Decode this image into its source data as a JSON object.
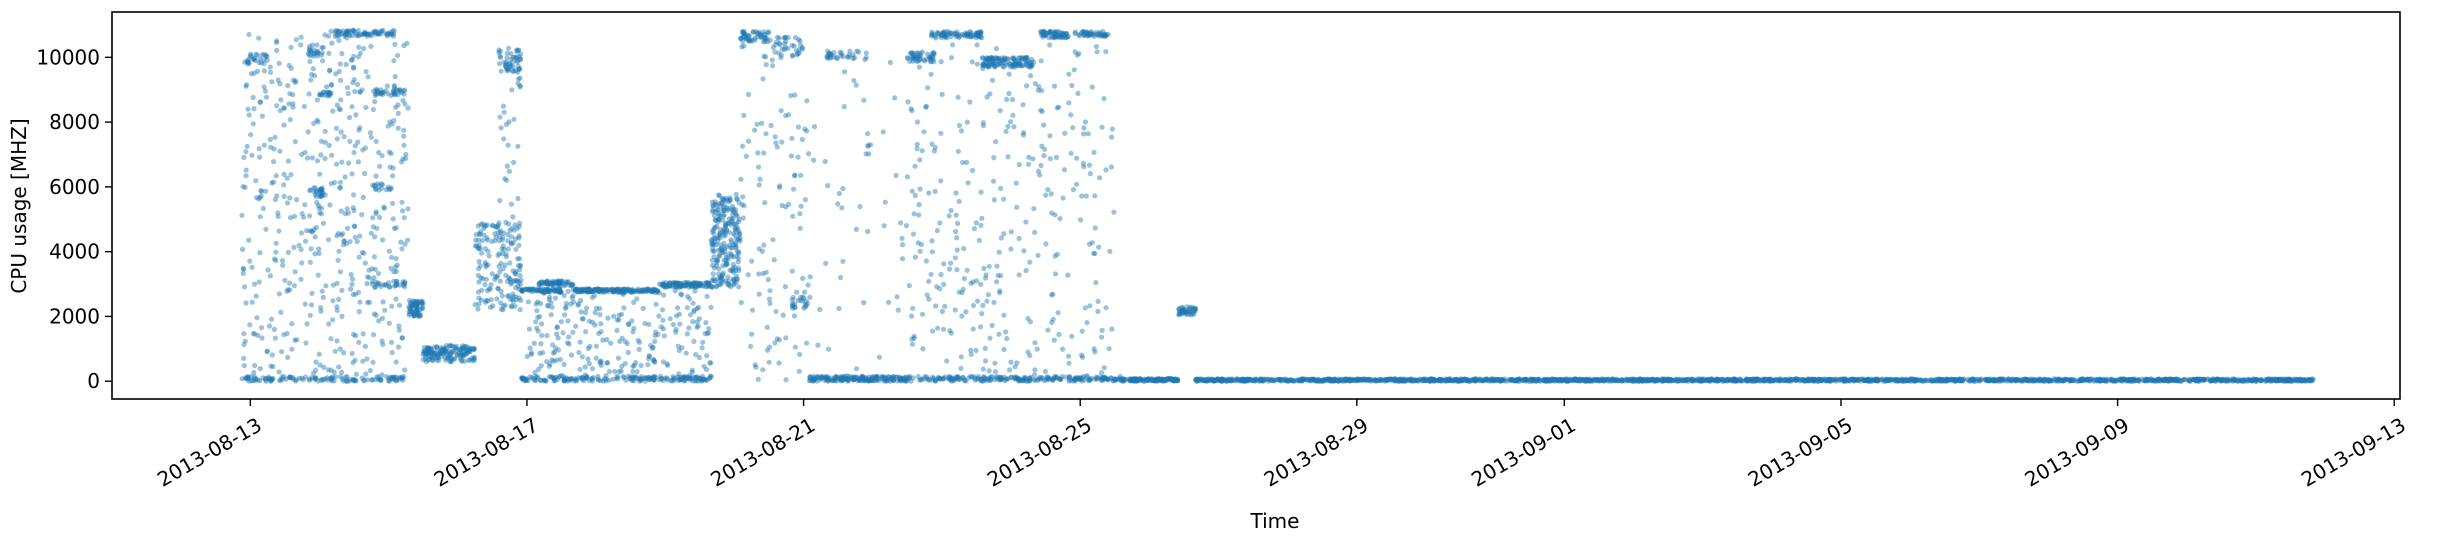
{
  "chart_data": {
    "type": "scatter",
    "title": "",
    "xlabel": "Time",
    "ylabel": "CPU usage [MHZ]",
    "x_axis_type": "date",
    "xlim": [
      "2013-08-11T00:00",
      "2013-09-13T02:00"
    ],
    "ylim": [
      -550,
      11400
    ],
    "x_ticks": [
      "2013-08-13",
      "2013-08-17",
      "2013-08-21",
      "2013-08-25",
      "2013-08-29",
      "2013-09-01",
      "2013-09-05",
      "2013-09-09",
      "2013-09-13"
    ],
    "y_ticks": [
      0,
      2000,
      4000,
      6000,
      8000,
      10000
    ],
    "grid": false,
    "legend": "none",
    "marker_color": "#1f77b4",
    "marker_alpha": 0.45,
    "series": [
      {
        "clusters": [
          {
            "x_start": "2013-08-12T21:00",
            "x_end": "2013-08-15T07:00",
            "y_min": 0,
            "y_max": 10800,
            "count": 520,
            "spread": "uniform"
          },
          {
            "x_start": "2013-08-12T21:00",
            "x_end": "2013-08-15T07:00",
            "y_min": 0,
            "y_max": 150,
            "count": 110,
            "spread": "band"
          },
          {
            "x_start": "2013-08-12T22:00",
            "x_end": "2013-08-13T06:00",
            "y_min": 9800,
            "y_max": 10100,
            "count": 25,
            "spread": "band"
          },
          {
            "x_start": "2013-08-13T20:00",
            "x_end": "2013-08-14T01:00",
            "y_min": 10000,
            "y_max": 10400,
            "count": 20,
            "spread": "band"
          },
          {
            "x_start": "2013-08-13T20:00",
            "x_end": "2013-08-14T02:00",
            "y_min": 5700,
            "y_max": 6000,
            "count": 25,
            "spread": "band"
          },
          {
            "x_start": "2013-08-14T00:00",
            "x_end": "2013-08-14T04:00",
            "y_min": 8800,
            "y_max": 8950,
            "count": 15,
            "spread": "band"
          },
          {
            "x_start": "2013-08-14T03:00",
            "x_end": "2013-08-15T02:00",
            "y_min": 10650,
            "y_max": 10850,
            "count": 70,
            "spread": "band"
          },
          {
            "x_start": "2013-08-14T18:00",
            "x_end": "2013-08-15T06:00",
            "y_min": 8850,
            "y_max": 9000,
            "count": 30,
            "spread": "band"
          },
          {
            "x_start": "2013-08-14T18:00",
            "x_end": "2013-08-15T02:00",
            "y_min": 5900,
            "y_max": 6100,
            "count": 15,
            "spread": "band"
          },
          {
            "x_start": "2013-08-14T18:00",
            "x_end": "2013-08-15T06:00",
            "y_min": 2900,
            "y_max": 3100,
            "count": 25,
            "spread": "band"
          },
          {
            "x_start": "2013-08-15T07:00",
            "x_end": "2013-08-15T12:00",
            "y_min": 2000,
            "y_max": 2500,
            "count": 60,
            "spread": "band"
          },
          {
            "x_start": "2013-08-15T12:00",
            "x_end": "2013-08-16T06:00",
            "y_min": 600,
            "y_max": 1100,
            "count": 150,
            "spread": "band"
          },
          {
            "x_start": "2013-08-16T06:00",
            "x_end": "2013-08-16T22:00",
            "y_min": 2200,
            "y_max": 4900,
            "count": 170,
            "spread": "uniform"
          },
          {
            "x_start": "2013-08-16T14:00",
            "x_end": "2013-08-16T22:00",
            "y_min": 9500,
            "y_max": 10300,
            "count": 50,
            "spread": "uniform"
          },
          {
            "x_start": "2013-08-16T14:00",
            "x_end": "2013-08-16T22:00",
            "y_min": 5000,
            "y_max": 9500,
            "count": 25,
            "spread": "uniform"
          },
          {
            "x_start": "2013-08-16T22:00",
            "x_end": "2013-08-17T12:00",
            "y_min": 2750,
            "y_max": 2850,
            "count": 70,
            "spread": "band"
          },
          {
            "x_start": "2013-08-17T04:00",
            "x_end": "2013-08-17T16:00",
            "y_min": 2950,
            "y_max": 3100,
            "count": 60,
            "spread": "band"
          },
          {
            "x_start": "2013-08-17T16:00",
            "x_end": "2013-08-18T22:00",
            "y_min": 2750,
            "y_max": 2850,
            "count": 160,
            "spread": "band"
          },
          {
            "x_start": "2013-08-18T22:00",
            "x_end": "2013-08-19T16:00",
            "y_min": 2900,
            "y_max": 3050,
            "count": 100,
            "spread": "band"
          },
          {
            "x_start": "2013-08-17T00:00",
            "x_end": "2013-08-19T16:00",
            "y_min": 0,
            "y_max": 2800,
            "count": 260,
            "spread": "uniform"
          },
          {
            "x_start": "2013-08-16T22:00",
            "x_end": "2013-08-19T16:00",
            "y_min": 0,
            "y_max": 150,
            "count": 170,
            "spread": "band"
          },
          {
            "x_start": "2013-08-19T16:00",
            "x_end": "2013-08-20T02:00",
            "y_min": 2900,
            "y_max": 5800,
            "count": 230,
            "spread": "uniform"
          },
          {
            "x_start": "2013-08-20T02:00",
            "x_end": "2013-08-20T12:00",
            "y_min": 10500,
            "y_max": 10800,
            "count": 45,
            "spread": "band"
          },
          {
            "x_start": "2013-08-20T10:00",
            "x_end": "2013-08-21T00:00",
            "y_min": 10000,
            "y_max": 10650,
            "count": 40,
            "spread": "uniform"
          },
          {
            "x_start": "2013-08-20T02:00",
            "x_end": "2013-08-21T02:00",
            "y_min": 0,
            "y_max": 10500,
            "count": 110,
            "spread": "uniform"
          },
          {
            "x_start": "2013-08-20T20:00",
            "x_end": "2013-08-21T02:00",
            "y_min": 2200,
            "y_max": 2600,
            "count": 20,
            "spread": "band"
          },
          {
            "x_start": "2013-08-21T02:00",
            "x_end": "2013-08-22T12:00",
            "y_min": 0,
            "y_max": 150,
            "count": 180,
            "spread": "band"
          },
          {
            "x_start": "2013-08-21T08:00",
            "x_end": "2013-08-21T22:00",
            "y_min": 9950,
            "y_max": 10200,
            "count": 30,
            "spread": "band"
          },
          {
            "x_start": "2013-08-21T02:00",
            "x_end": "2013-08-22T12:00",
            "y_min": 0,
            "y_max": 10000,
            "count": 50,
            "spread": "uniform"
          },
          {
            "x_start": "2013-08-22T12:00",
            "x_end": "2013-08-22T22:00",
            "y_min": 9850,
            "y_max": 10150,
            "count": 45,
            "spread": "band"
          },
          {
            "x_start": "2013-08-22T20:00",
            "x_end": "2013-08-23T14:00",
            "y_min": 10600,
            "y_max": 10800,
            "count": 80,
            "spread": "band"
          },
          {
            "x_start": "2013-08-23T14:00",
            "x_end": "2013-08-24T08:00",
            "y_min": 9700,
            "y_max": 10000,
            "count": 120,
            "spread": "band"
          },
          {
            "x_start": "2013-08-24T10:00",
            "x_end": "2013-08-24T20:00",
            "y_min": 10600,
            "y_max": 10800,
            "count": 60,
            "spread": "band"
          },
          {
            "x_start": "2013-08-24T22:00",
            "x_end": "2013-08-25T10:00",
            "y_min": 10650,
            "y_max": 10800,
            "count": 45,
            "spread": "band"
          },
          {
            "x_start": "2013-08-22T12:00",
            "x_end": "2013-08-25T12:00",
            "y_min": 0,
            "y_max": 10500,
            "count": 330,
            "spread": "uniform"
          },
          {
            "x_start": "2013-08-22T12:00",
            "x_end": "2013-08-25T14:00",
            "y_min": 0,
            "y_max": 150,
            "count": 220,
            "spread": "band"
          },
          {
            "x_start": "2013-08-25T14:00",
            "x_end": "2013-08-26T10:00",
            "y_min": 0,
            "y_max": 80,
            "count": 140,
            "spread": "band"
          },
          {
            "x_start": "2013-08-26T10:00",
            "x_end": "2013-08-26T16:00",
            "y_min": 2050,
            "y_max": 2300,
            "count": 45,
            "spread": "band"
          },
          {
            "x_start": "2013-08-26T16:00",
            "x_end": "2013-09-11T20:00",
            "y_min": 0,
            "y_max": 70,
            "count": 2200,
            "spread": "band"
          }
        ]
      }
    ]
  }
}
